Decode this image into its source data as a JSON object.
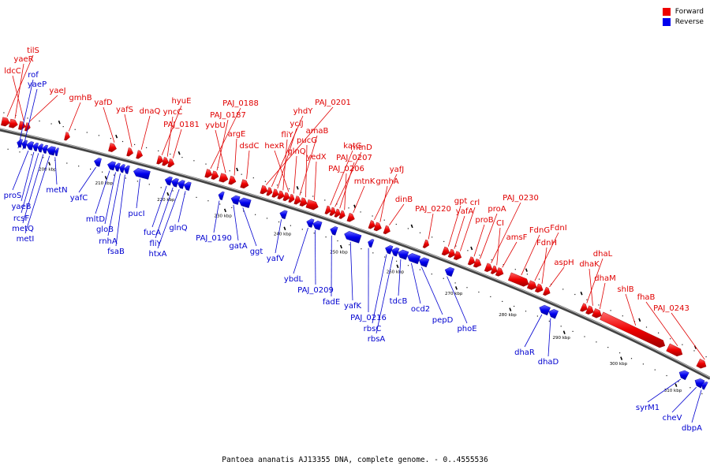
{
  "legend": {
    "forward_label": "Forward",
    "reverse_label": "Reverse",
    "forward_color": "#ee0000",
    "reverse_color": "#0000ee"
  },
  "caption": "Pantoea ananatis AJ13355 DNA, complete genome. - 0..4555536",
  "scale_labels": [
    "200 kbp",
    "210 kbp",
    "220 kbp",
    "230 kbp",
    "240 kbp",
    "250 kbp",
    "260 kbp",
    "270 kbp",
    "280 kbp",
    "290 kbp",
    "300 kbp",
    "310 kbp"
  ],
  "forward_genes": [
    "tilS",
    "yaeR",
    "ldcC",
    "yaeJ",
    "gmhB",
    "yafD",
    "yafS",
    "dnaQ",
    "hyuE",
    "yncC",
    "PAJ_0181",
    "PAJ_0188",
    "PAJ_0187",
    "yvbU",
    "argE",
    "dsdC",
    "PAJ_0201",
    "yhdY",
    "yciJ",
    "fliY",
    "hexR",
    "glnQ",
    "amaB",
    "pucG",
    "yedX",
    "katG",
    "mtnD",
    "PAJ_0207",
    "PAJ_0206",
    "mtnK",
    "yafJ",
    "gmhA",
    "dinB",
    "PAJ_0220",
    "gpt",
    "yafA",
    "crl",
    "proB",
    "proA",
    "PAJ_0230",
    "CI",
    "amsF",
    "FdnG",
    "FdnI",
    "FdnH",
    "aspH",
    "dhaL",
    "dhaK",
    "dhaM",
    "shlB",
    "fhaB",
    "PAJ_0243"
  ],
  "reverse_genes": [
    "rof",
    "yaeP",
    "proS",
    "yaeB",
    "rcsF",
    "metQ",
    "metI",
    "metN",
    "yafC",
    "mltD",
    "gloB",
    "rnhA",
    "fsaB",
    "pucI",
    "fucA",
    "fliY",
    "htxA",
    "glnQ",
    "PAJ_0190",
    "gatA",
    "ggt",
    "yafV",
    "ybdL",
    "PAJ_0209",
    "fadE",
    "yafK",
    "PAJ_0216",
    "rbsC",
    "rbsA",
    "tdcB",
    "ocd2",
    "pepD",
    "phoE",
    "dhaR",
    "dhaD",
    "syrM1",
    "cheV",
    "dbpA"
  ]
}
